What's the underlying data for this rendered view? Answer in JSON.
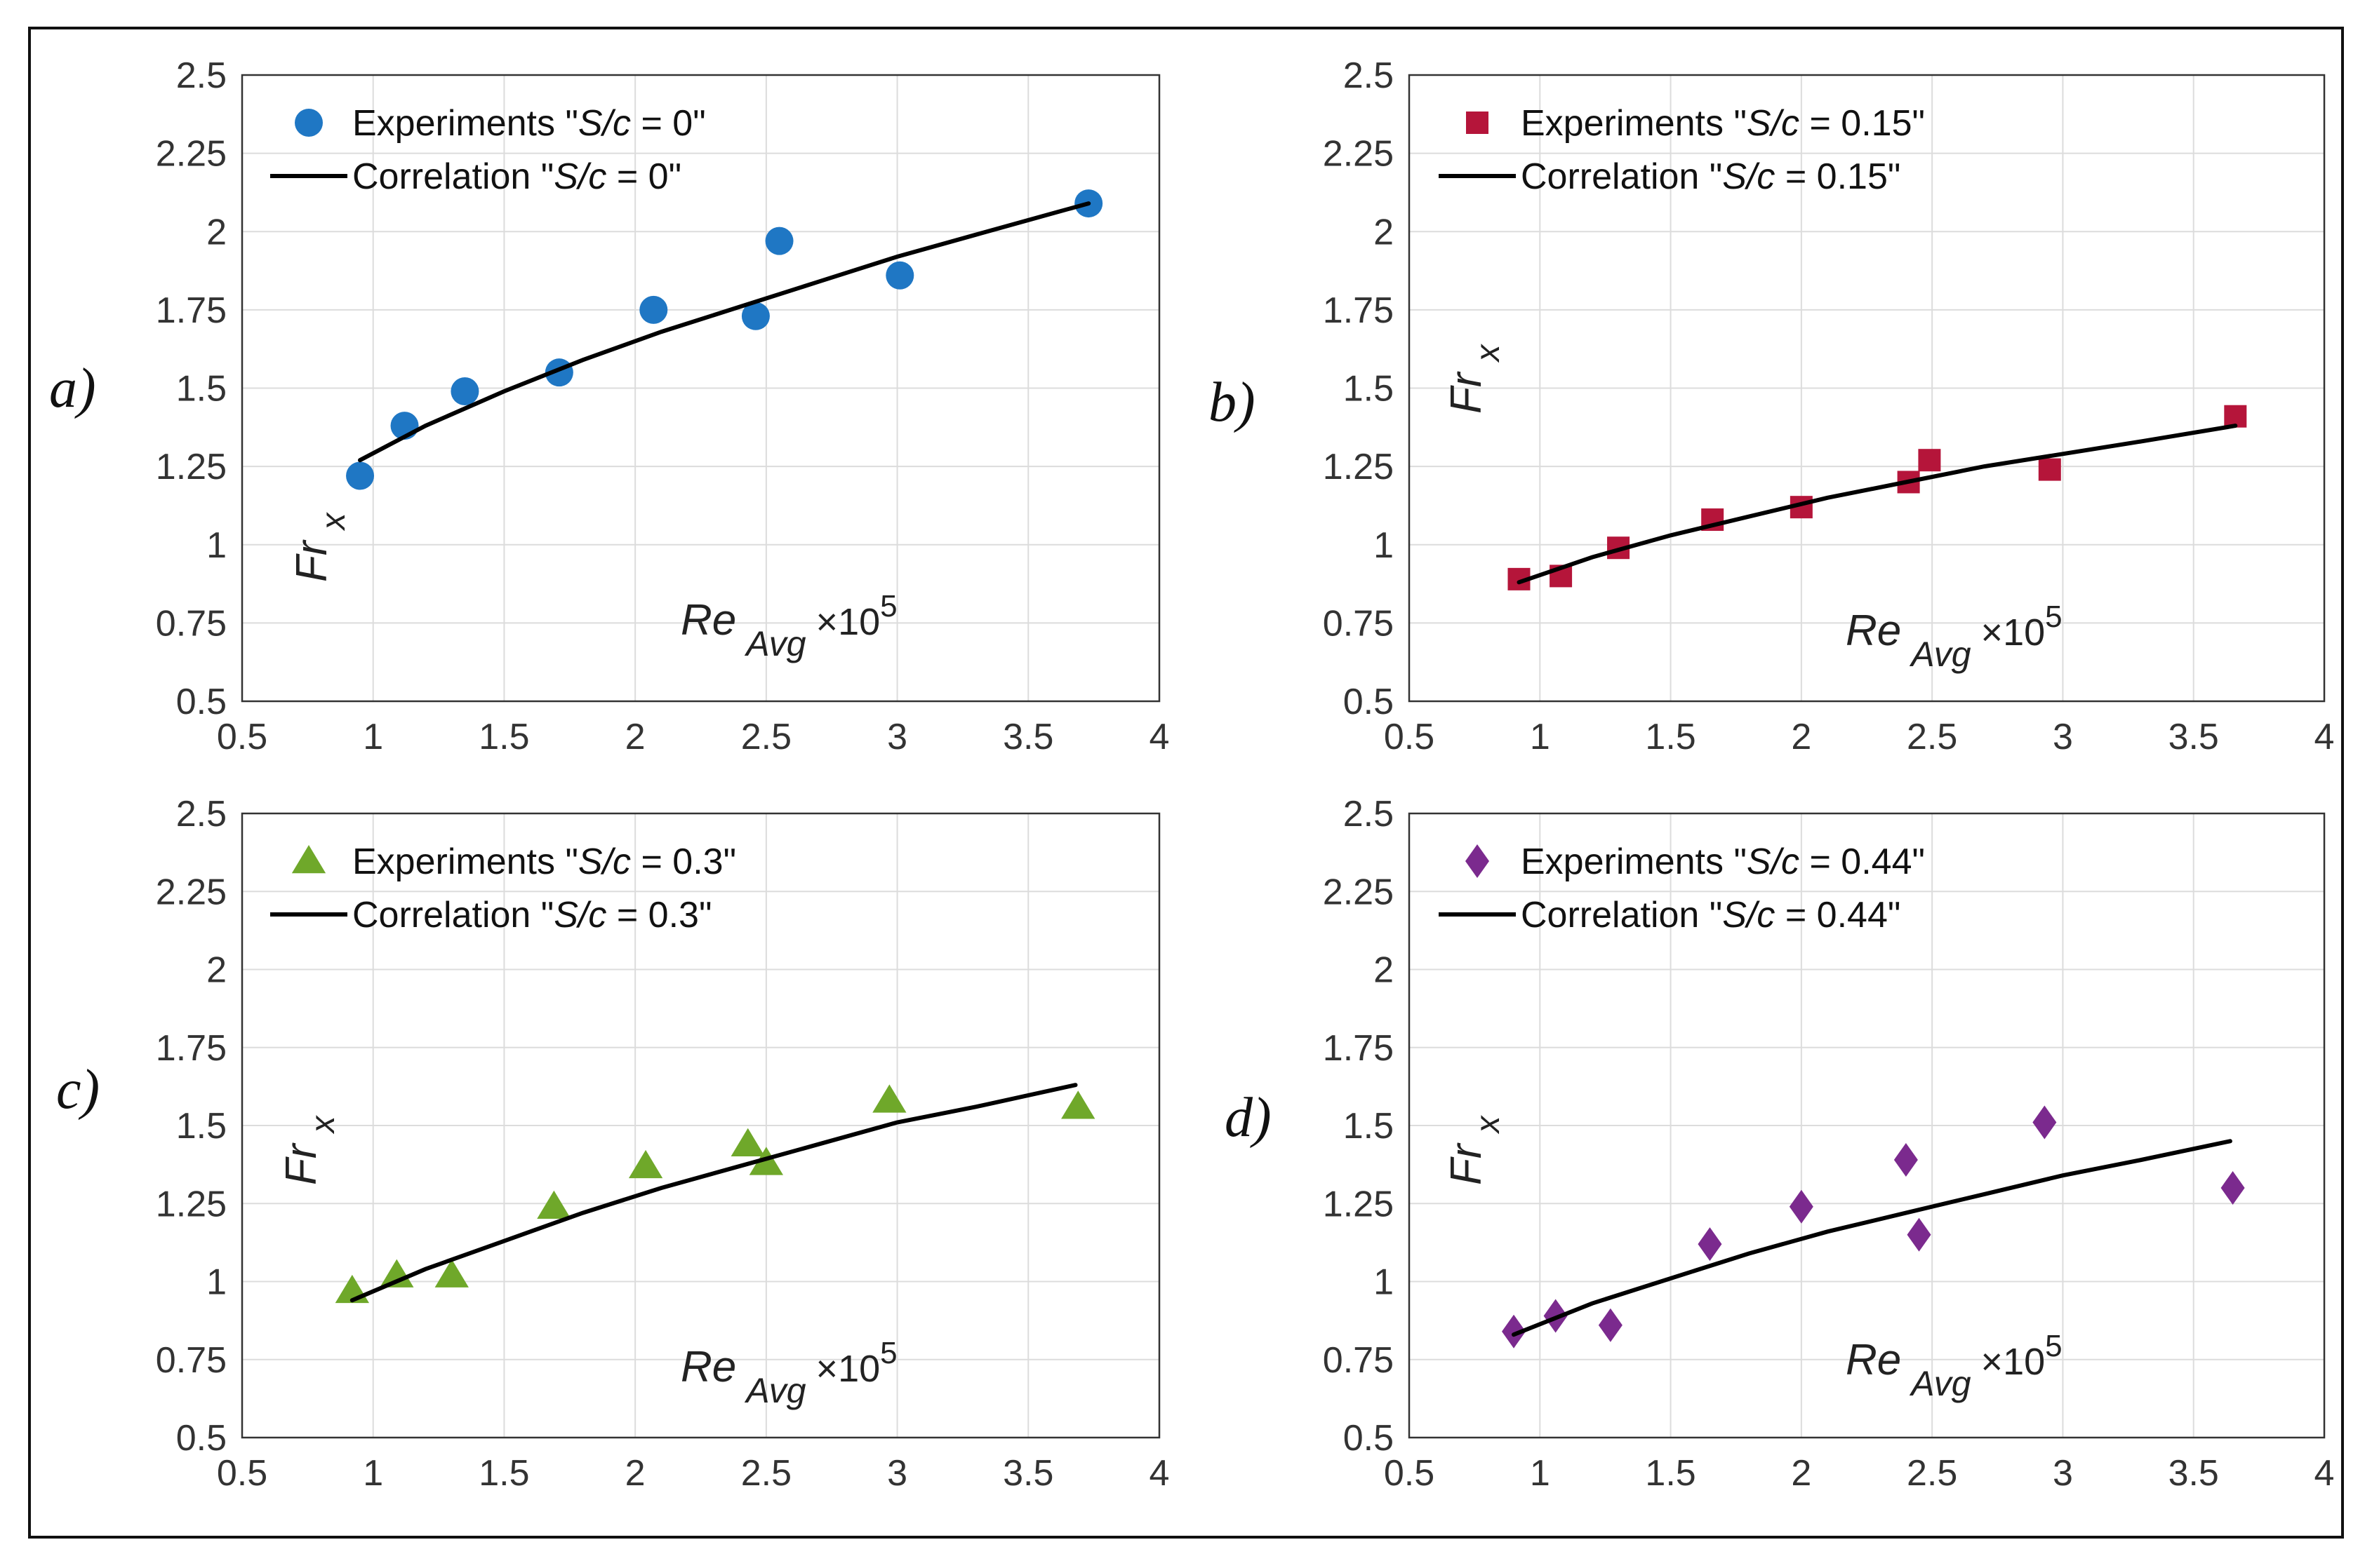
{
  "chart_data": [
    {
      "panel_label": "a)",
      "type": "scatter",
      "xlim": [
        0.5,
        4
      ],
      "ylim": [
        0.5,
        2.5
      ],
      "xticks": [
        "0.5",
        "1",
        "1.5",
        "2",
        "2.5",
        "3",
        "3.5",
        "4"
      ],
      "yticks": [
        "0.5",
        "0.75",
        "1",
        "1.25",
        "1.5",
        "1.75",
        "2",
        "2.25",
        "2.5"
      ],
      "ylabel": "Fr",
      "ylabel_sub": "x",
      "xlabel": "Re",
      "xlabel_sub": "Avg",
      "xlabel_scale": "×10",
      "xlabel_exp": "5",
      "grid": true,
      "legend_position": "top-left",
      "series": [
        {
          "name": "Experiments \"S/c = 0\"",
          "name_prefix": "Experiments \"",
          "name_italic": "S/c",
          "name_suffix": " = 0\"",
          "kind": "marker",
          "marker": "circle",
          "color": "#1f77c4",
          "x": [
            0.95,
            1.12,
            1.35,
            1.71,
            2.07,
            2.46,
            2.55,
            3.01,
            3.73
          ],
          "y": [
            1.22,
            1.38,
            1.49,
            1.55,
            1.75,
            1.73,
            1.97,
            1.86,
            2.09
          ]
        },
        {
          "name": "Correlation \"S/c = 0\"",
          "name_prefix": "Correlation \"",
          "name_italic": "S/c",
          "name_suffix": " = 0\"",
          "kind": "line",
          "color": "#000000",
          "x": [
            0.95,
            1.2,
            1.5,
            1.8,
            2.1,
            2.4,
            2.7,
            3.0,
            3.3,
            3.6,
            3.73
          ],
          "y": [
            1.27,
            1.38,
            1.49,
            1.59,
            1.68,
            1.76,
            1.84,
            1.92,
            1.99,
            2.06,
            2.09
          ]
        }
      ]
    },
    {
      "panel_label": "b)",
      "type": "scatter",
      "xlim": [
        0.5,
        4
      ],
      "ylim": [
        0.5,
        2.5
      ],
      "xticks": [
        "0.5",
        "1",
        "1.5",
        "2",
        "2.5",
        "3",
        "3.5",
        "4"
      ],
      "yticks": [
        "0.5",
        "0.75",
        "1",
        "1.25",
        "1.5",
        "1.75",
        "2",
        "2.25",
        "2.5"
      ],
      "ylabel": "Fr",
      "ylabel_sub": "x",
      "xlabel": "Re",
      "xlabel_sub": "Avg",
      "xlabel_scale": "×10",
      "xlabel_exp": "5",
      "grid": true,
      "legend_position": "top-left",
      "series": [
        {
          "name": "Experiments \"S/c = 0.15\"",
          "name_prefix": "Experiments \"",
          "name_italic": "S/c",
          "name_suffix": " = 0.15\"",
          "kind": "marker",
          "marker": "square",
          "color": "#b5153a",
          "x": [
            0.92,
            1.08,
            1.3,
            1.66,
            2.0,
            2.41,
            2.49,
            2.95,
            3.66
          ],
          "y": [
            0.89,
            0.9,
            0.99,
            1.08,
            1.12,
            1.2,
            1.27,
            1.24,
            1.41
          ]
        },
        {
          "name": "Correlation \"S/c = 0.15\"",
          "name_prefix": "Correlation \"",
          "name_italic": "S/c",
          "name_suffix": " = 0.15\"",
          "kind": "line",
          "color": "#000000",
          "x": [
            0.92,
            1.2,
            1.5,
            1.8,
            2.1,
            2.4,
            2.7,
            3.0,
            3.3,
            3.66
          ],
          "y": [
            0.88,
            0.96,
            1.03,
            1.09,
            1.15,
            1.2,
            1.25,
            1.29,
            1.33,
            1.38
          ]
        }
      ]
    },
    {
      "panel_label": "c)",
      "type": "scatter",
      "xlim": [
        0.5,
        4
      ],
      "ylim": [
        0.5,
        2.5
      ],
      "xticks": [
        "0.5",
        "1",
        "1.5",
        "2",
        "2.5",
        "3",
        "3.5",
        "4"
      ],
      "yticks": [
        "0.5",
        "0.75",
        "1",
        "1.25",
        "1.5",
        "1.75",
        "2",
        "2.25",
        "2.5"
      ],
      "ylabel": "Fr",
      "ylabel_sub": "x",
      "xlabel": "Re",
      "xlabel_sub": "Avg",
      "xlabel_scale": "×10",
      "xlabel_exp": "5",
      "grid": true,
      "legend_position": "top-left",
      "series": [
        {
          "name": "Experiments \"S/c = 0.3\"",
          "name_prefix": "Experiments \"",
          "name_italic": "S/c",
          "name_suffix": " = 0.3\"",
          "kind": "marker",
          "marker": "triangle",
          "color": "#6fa82a",
          "x": [
            0.92,
            1.09,
            1.3,
            1.69,
            2.04,
            2.43,
            2.5,
            2.97,
            3.69
          ],
          "y": [
            0.97,
            1.02,
            1.02,
            1.24,
            1.37,
            1.44,
            1.38,
            1.58,
            1.56
          ]
        },
        {
          "name": "Correlation \"S/c = 0.3\"",
          "name_prefix": "Correlation \"",
          "name_italic": "S/c",
          "name_suffix": " = 0.3\"",
          "kind": "line",
          "color": "#000000",
          "x": [
            0.92,
            1.2,
            1.5,
            1.8,
            2.1,
            2.4,
            2.7,
            3.0,
            3.3,
            3.68
          ],
          "y": [
            0.94,
            1.04,
            1.13,
            1.22,
            1.3,
            1.37,
            1.44,
            1.51,
            1.56,
            1.63
          ]
        }
      ]
    },
    {
      "panel_label": "d)",
      "type": "scatter",
      "xlim": [
        0.5,
        4
      ],
      "ylim": [
        0.5,
        2.5
      ],
      "xticks": [
        "0.5",
        "1",
        "1.5",
        "2",
        "2.5",
        "3",
        "3.5",
        "4"
      ],
      "yticks": [
        "0.5",
        "0.75",
        "1",
        "1.25",
        "1.5",
        "1.75",
        "2",
        "2.25",
        "2.5"
      ],
      "ylabel": "Fr",
      "ylabel_sub": "x",
      "xlabel": "Re",
      "xlabel_sub": "Avg",
      "xlabel_scale": "×10",
      "xlabel_exp": "5",
      "grid": true,
      "legend_position": "top-left",
      "series": [
        {
          "name": "Experiments \"S/c = 0.44\"",
          "name_prefix": "Experiments \"",
          "name_italic": "S/c",
          "name_suffix": " = 0.44\"",
          "kind": "marker",
          "marker": "diamond",
          "color": "#7b2a8e",
          "x": [
            0.9,
            1.06,
            1.27,
            1.65,
            2.0,
            2.4,
            2.45,
            2.93,
            3.65
          ],
          "y": [
            0.84,
            0.89,
            0.86,
            1.12,
            1.24,
            1.39,
            1.15,
            1.51,
            1.3
          ]
        },
        {
          "name": "Correlation \"S/c = 0.44\"",
          "name_prefix": "Correlation \"",
          "name_italic": "S/c",
          "name_suffix": " = 0.44\"",
          "kind": "line",
          "color": "#000000",
          "x": [
            0.9,
            1.2,
            1.5,
            1.8,
            2.1,
            2.4,
            2.7,
            3.0,
            3.3,
            3.64
          ],
          "y": [
            0.83,
            0.93,
            1.01,
            1.09,
            1.16,
            1.22,
            1.28,
            1.34,
            1.39,
            1.45
          ]
        }
      ]
    }
  ]
}
